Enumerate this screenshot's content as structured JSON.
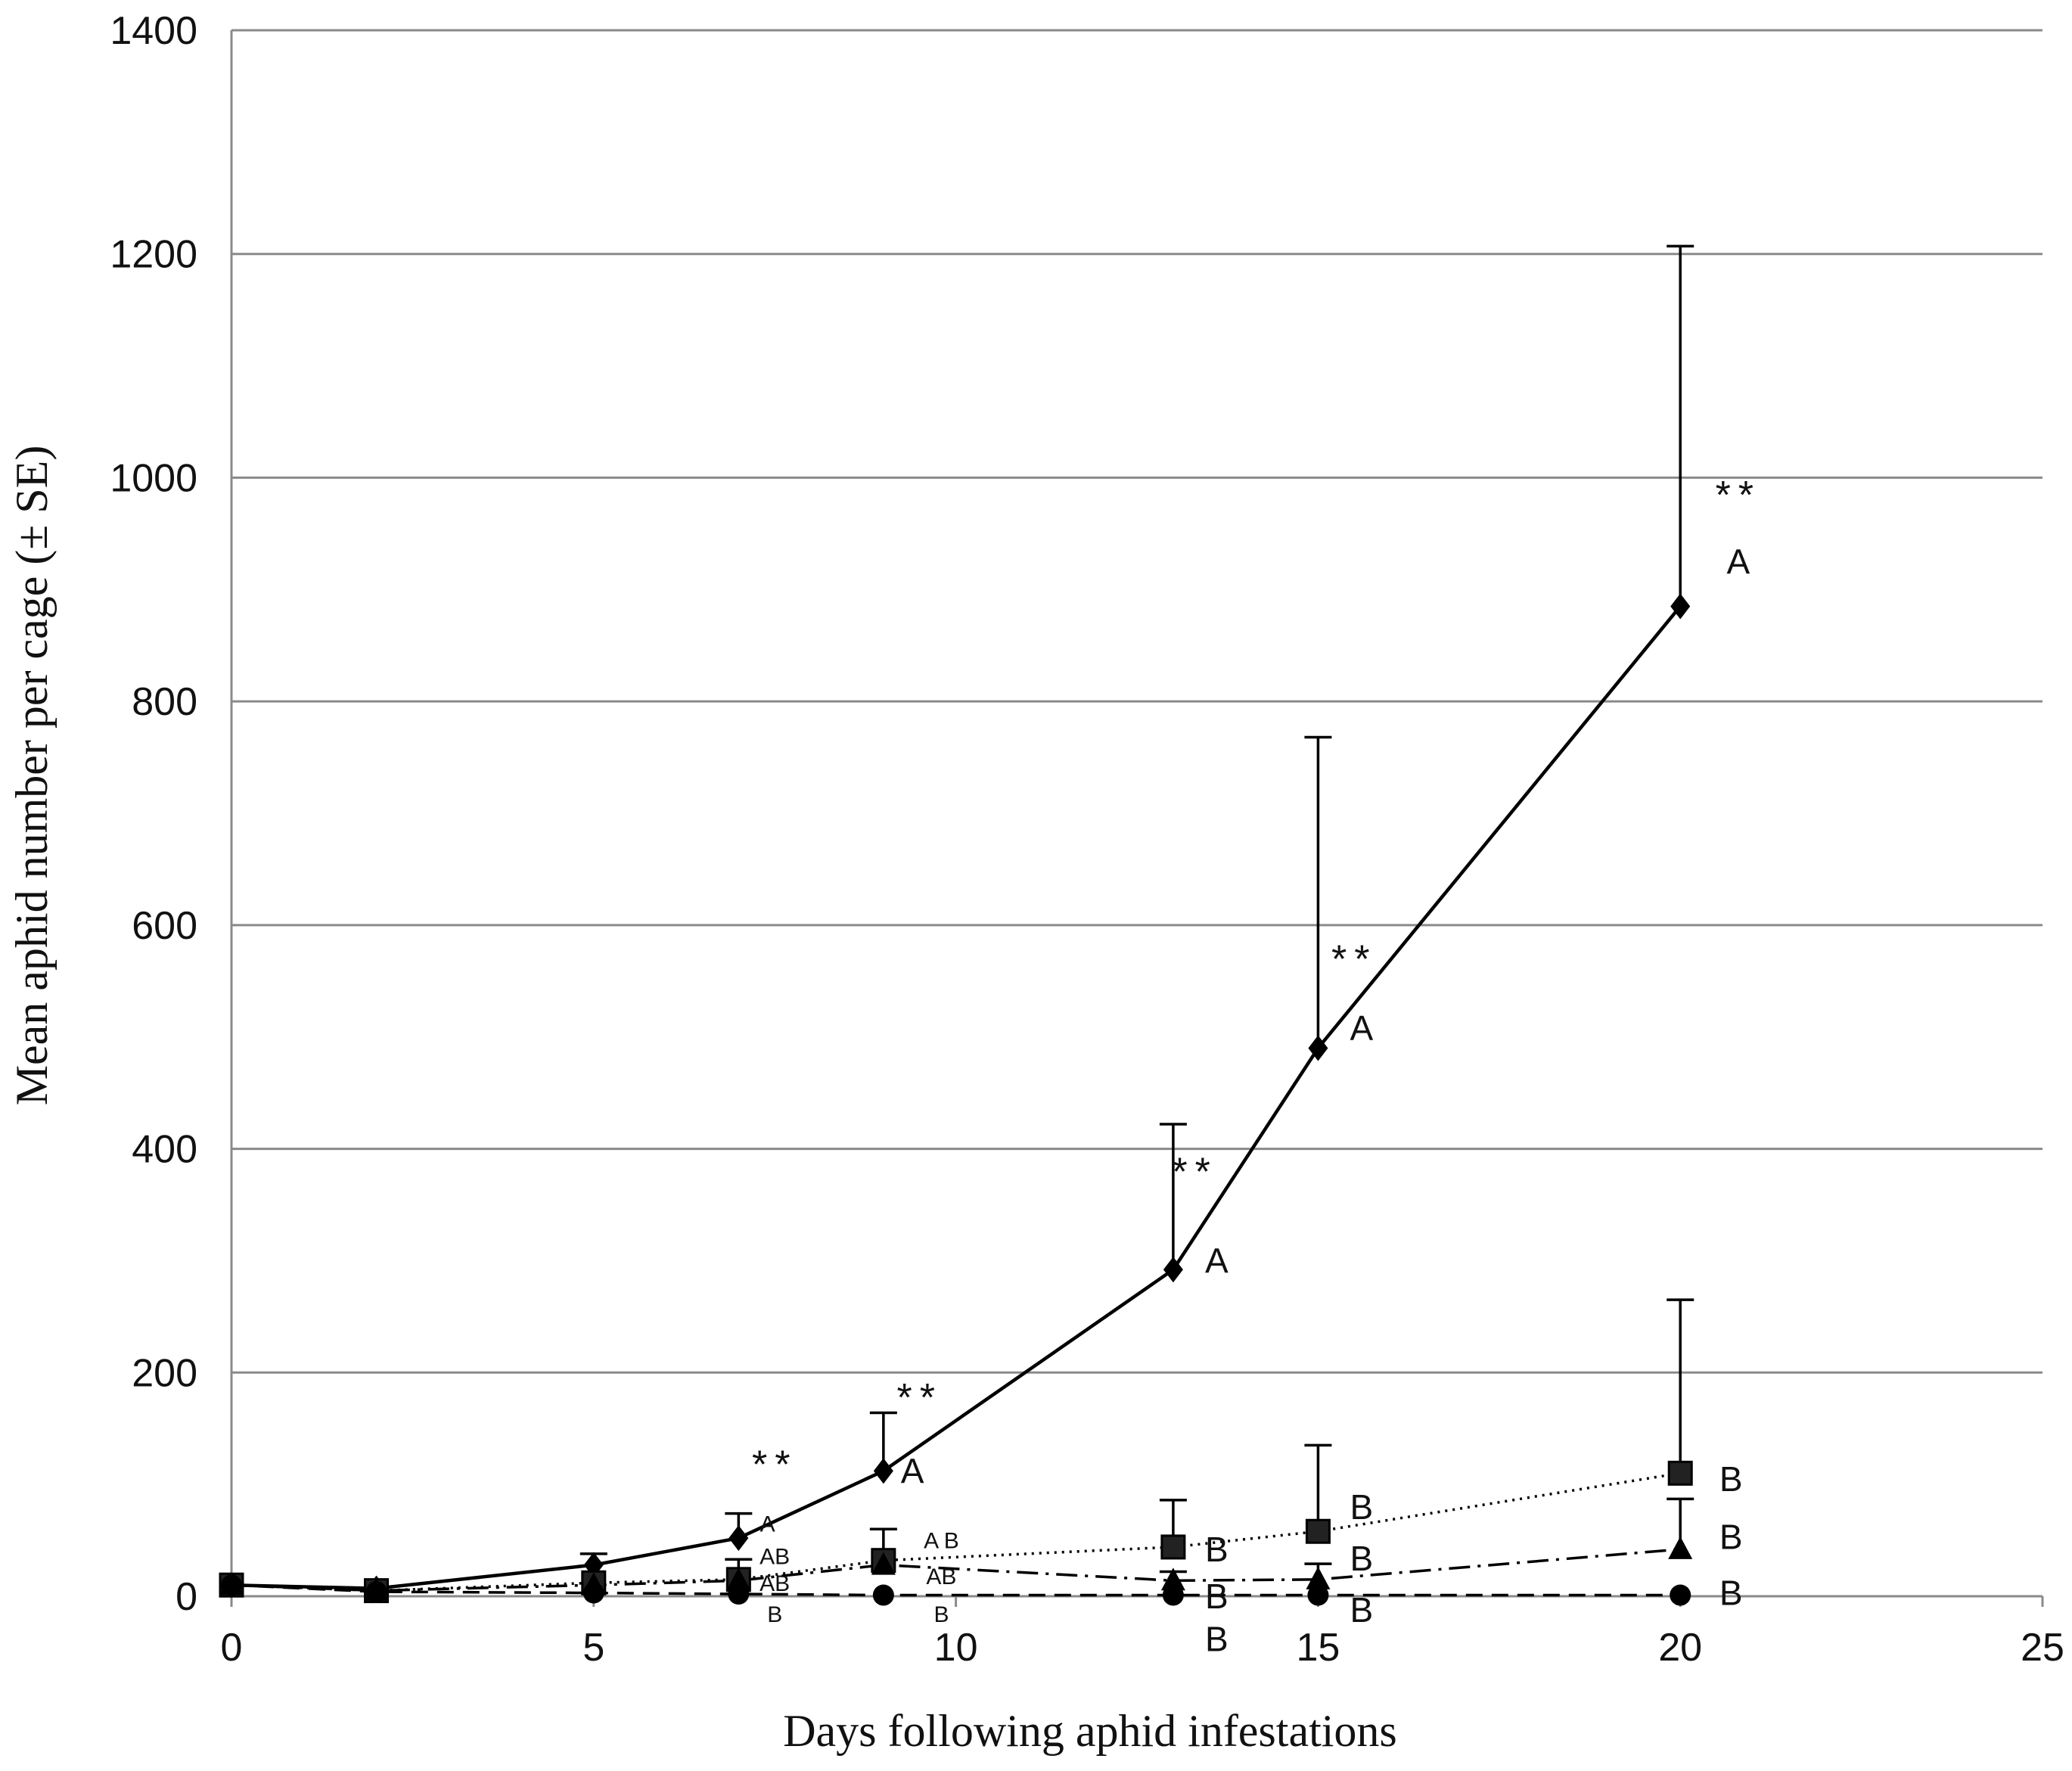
{
  "chart_data": {
    "type": "line",
    "xlabel": "Days following aphid infestations",
    "ylabel": "Mean aphid number per cage (± SE)",
    "xlim": [
      0,
      25
    ],
    "ylim": [
      0,
      1400
    ],
    "xticks": [
      "0",
      "5",
      "10",
      "15",
      "20",
      "25"
    ],
    "yticks": [
      "0",
      "200",
      "400",
      "600",
      "800",
      "1000",
      "1200",
      "1400"
    ],
    "grid": "horizontal",
    "series": [
      {
        "marker": "diamond",
        "line": "solid",
        "x": [
          0,
          2,
          5,
          7,
          9,
          13,
          15,
          20
        ],
        "values": [
          10,
          7,
          28,
          52,
          112,
          292,
          490,
          885
        ],
        "errors": [
          0,
          0,
          10,
          22,
          52,
          130,
          278,
          322
        ]
      },
      {
        "marker": "square",
        "line": "dotted",
        "x": [
          0,
          2,
          5,
          7,
          9,
          13,
          15,
          20
        ],
        "values": [
          10,
          5,
          12,
          15,
          32,
          44,
          58,
          110
        ],
        "errors": [
          0,
          0,
          0,
          18,
          28,
          42,
          77,
          155
        ]
      },
      {
        "marker": "triangle",
        "line": "dash-dot",
        "x": [
          0,
          2,
          5,
          7,
          9,
          13,
          15,
          20
        ],
        "values": [
          10,
          5,
          10,
          14,
          28,
          14,
          15,
          42
        ],
        "errors": [
          0,
          0,
          0,
          0,
          0,
          8,
          14,
          45
        ]
      },
      {
        "marker": "circle",
        "line": "dashed",
        "x": [
          0,
          2,
          5,
          7,
          9,
          13,
          15,
          20
        ],
        "values": [
          10,
          4,
          3,
          2,
          1,
          1,
          1,
          1
        ],
        "errors": [
          0,
          0,
          0,
          0,
          0,
          0,
          0,
          0
        ]
      }
    ],
    "annotations": [
      {
        "text": "**",
        "x": 7.5,
        "y": 118
      },
      {
        "text": "**",
        "x": 9.5,
        "y": 178
      },
      {
        "text": "**",
        "x": 13.3,
        "y": 380
      },
      {
        "text": "**",
        "x": 15.5,
        "y": 570
      },
      {
        "text": "**",
        "x": 20.8,
        "y": 985
      },
      {
        "text": "A",
        "x": 7.4,
        "y": 65
      },
      {
        "text": "AB",
        "x": 7.5,
        "y": 36
      },
      {
        "text": "AB",
        "x": 7.5,
        "y": 12
      },
      {
        "text": "B",
        "x": 7.5,
        "y": -16
      },
      {
        "text": "A",
        "x": 9.4,
        "y": 112
      },
      {
        "text": "A B",
        "x": 9.8,
        "y": 50
      },
      {
        "text": "AB",
        "x": 9.8,
        "y": 18
      },
      {
        "text": "B",
        "x": 9.8,
        "y": -16
      },
      {
        "text": "A",
        "x": 13.6,
        "y": 300
      },
      {
        "text": "B",
        "x": 13.6,
        "y": 42
      },
      {
        "text": "B",
        "x": 13.6,
        "y": 0
      },
      {
        "text": "B",
        "x": 13.6,
        "y": -38
      },
      {
        "text": "A",
        "x": 15.6,
        "y": 508
      },
      {
        "text": "B",
        "x": 15.6,
        "y": 80
      },
      {
        "text": "B",
        "x": 15.6,
        "y": 34
      },
      {
        "text": "B",
        "x": 15.6,
        "y": -12
      },
      {
        "text": "A",
        "x": 20.8,
        "y": 925
      },
      {
        "text": "B",
        "x": 20.7,
        "y": 105
      },
      {
        "text": "B",
        "x": 20.7,
        "y": 53
      },
      {
        "text": "B",
        "x": 20.7,
        "y": 3
      }
    ]
  }
}
